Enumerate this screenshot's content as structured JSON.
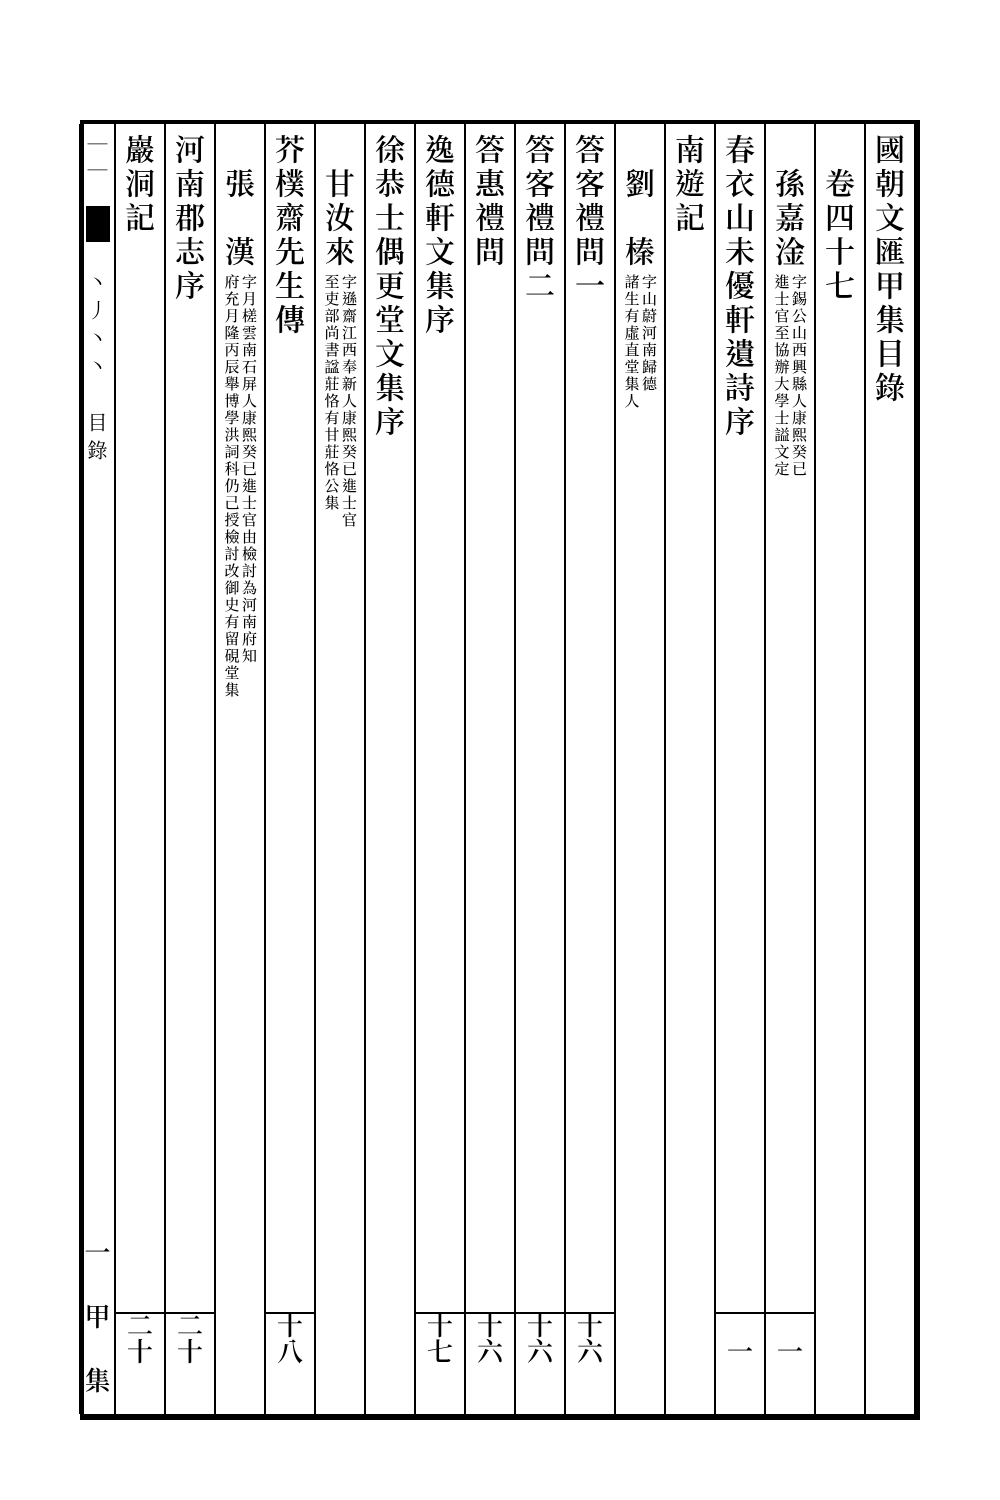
{
  "columns": [
    {
      "main": "國朝文匯甲集目錄",
      "small1": "",
      "small2": "",
      "num": ""
    },
    {
      "main": "　卷四十七",
      "small1": "",
      "small2": "",
      "num": ""
    },
    {
      "main": "　孫嘉淦",
      "small1": "字錫公山西興縣人康熙癸已",
      "small2": "進士官至協辦大學士謚文定",
      "num": "一"
    },
    {
      "main": "春衣山未優軒遺詩序",
      "small1": "",
      "small2": "",
      "num": "一"
    },
    {
      "main": "南遊記",
      "small1": "",
      "small2": "",
      "num": ""
    },
    {
      "main": "　劉　榛",
      "small1": "字山蔚河南歸德",
      "small2": "諸生有虛直堂集人",
      "num": ""
    },
    {
      "main": "答客禮問一",
      "small1": "",
      "small2": "",
      "num": "十六"
    },
    {
      "main": "答客禮問二",
      "small1": "",
      "small2": "",
      "num": "十六"
    },
    {
      "main": "答惠禮問",
      "small1": "",
      "small2": "",
      "num": "十六"
    },
    {
      "main": "逸德軒文集序",
      "small1": "",
      "small2": "",
      "num": "十七"
    },
    {
      "main": "徐恭士偶更堂文集序",
      "small1": "",
      "small2": "",
      "num": ""
    },
    {
      "main": "　甘汝來",
      "small1": "字遜齋江西奉新人康熙癸已進士官",
      "small2": "至吏部尚書諡莊恪有甘莊恪公集",
      "num": ""
    },
    {
      "main": "芥樸齋先生傳",
      "small1": "",
      "small2": "",
      "num": "十八"
    },
    {
      "main": "　張　漢",
      "small1": "字月槎雲南石屏人康熙癸已進士官由檢討為河南府知",
      "small2": "府充月隆丙辰舉博學洪詞科仍己授檢討改御史有留硯堂集",
      "num": ""
    },
    {
      "main": "河南郡志序",
      "small1": "",
      "small2": "",
      "num": "二十"
    },
    {
      "main": "巖洞記",
      "small1": "",
      "small2": "",
      "num": "二十"
    }
  ],
  "spine": {
    "top": "｜｜",
    "mid": "丶丿丶丶　目錄",
    "bottom": "一　甲　集"
  }
}
